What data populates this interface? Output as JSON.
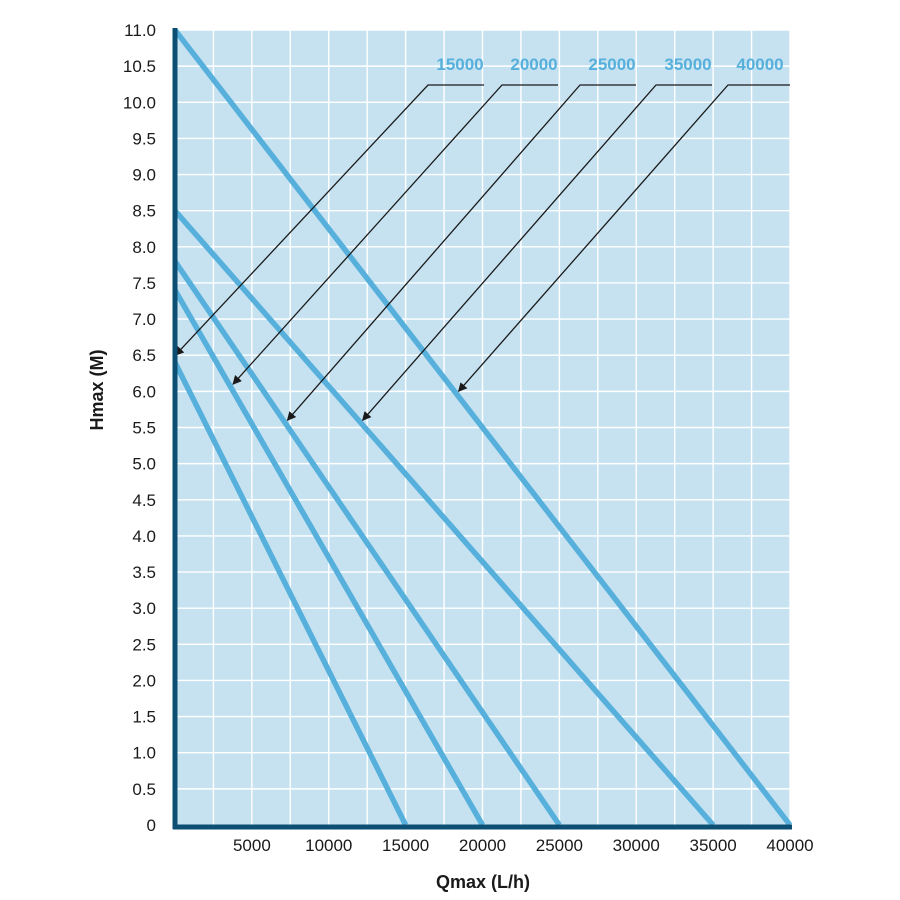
{
  "chart_data": {
    "type": "line",
    "xlabel": "Qmax (L/h)",
    "ylabel": "Hmax (M)",
    "xlim": [
      0,
      40000
    ],
    "ylim": [
      0,
      11
    ],
    "x_ticks": [
      5000,
      10000,
      15000,
      20000,
      25000,
      30000,
      35000,
      40000
    ],
    "x_tick_labels": [
      "5000",
      "10000",
      "15000",
      "20000",
      "25000",
      "30000",
      "35000",
      "40000"
    ],
    "x_grid_step": 2500,
    "y_ticks": [
      0,
      0.5,
      1,
      1.5,
      2,
      2.5,
      3,
      3.5,
      4,
      4.5,
      5,
      5.5,
      6,
      6.5,
      7,
      7.5,
      8,
      8.5,
      9,
      9.5,
      10,
      10.5,
      11
    ],
    "y_tick_labels": [
      "0",
      "0.5",
      "1.0",
      "1.5",
      "2.0",
      "2.5",
      "3.0",
      "3.5",
      "4.0",
      "4.5",
      "5.0",
      "5.5",
      "6.0",
      "6.5",
      "7.0",
      "7.5",
      "8.0",
      "8.5",
      "9.0",
      "9.5",
      "10.0",
      "10.5",
      "11.0"
    ],
    "grid": true,
    "legend": "top-right, leader arrows to each line",
    "series": [
      {
        "name": "15000",
        "x": [
          0,
          15000
        ],
        "y": [
          6.4,
          0
        ]
      },
      {
        "name": "20000",
        "x": [
          0,
          20000
        ],
        "y": [
          7.4,
          0
        ]
      },
      {
        "name": "25000",
        "x": [
          0,
          25000
        ],
        "y": [
          7.8,
          0
        ]
      },
      {
        "name": "35000",
        "x": [
          0,
          35000
        ],
        "y": [
          8.5,
          0
        ]
      },
      {
        "name": "40000",
        "x": [
          0,
          40000
        ],
        "y": [
          11.0,
          0
        ]
      }
    ],
    "colors": {
      "plot_background": "#c6e2f0",
      "grid": "#ffffff",
      "line": "#56b0db",
      "axis": "#0d4f73",
      "label": "#56b0db",
      "arrow": "#1a1a1a"
    }
  }
}
